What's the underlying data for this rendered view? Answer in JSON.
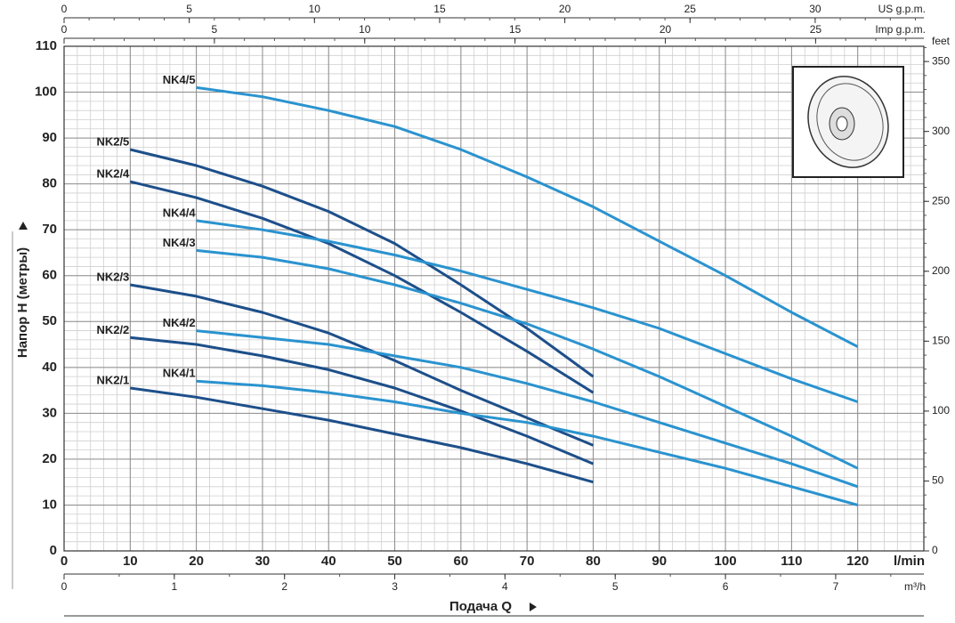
{
  "chart_data": {
    "type": "line",
    "y_label": "Напор H (метры)",
    "x_label": "Подача Q",
    "x_unit": "l/min",
    "x": [
      10,
      20,
      30,
      40,
      50,
      60,
      70,
      80,
      90,
      100,
      110,
      120
    ],
    "xlim": [
      0,
      130
    ],
    "xticks": [
      0,
      10,
      20,
      30,
      40,
      50,
      60,
      70,
      80,
      90,
      100,
      110,
      120
    ],
    "ylim": [
      0,
      110
    ],
    "yticks": [
      0,
      10,
      20,
      30,
      40,
      50,
      60,
      70,
      80,
      90,
      100,
      110
    ],
    "grid": true,
    "minor_step": {
      "x": 2,
      "y": 2
    },
    "series": [
      {
        "name": "NK2/5",
        "color": "#1d4f8a",
        "values": [
          87.5,
          84,
          79.5,
          74,
          67,
          58,
          48.5,
          38,
          null,
          null,
          null,
          null
        ]
      },
      {
        "name": "NK2/4",
        "color": "#1d4f8a",
        "values": [
          80.5,
          77,
          72.5,
          67,
          60,
          52,
          43.5,
          34.5,
          null,
          null,
          null,
          null
        ]
      },
      {
        "name": "NK2/3",
        "color": "#1d4f8a",
        "values": [
          58,
          55.5,
          52,
          47.5,
          41.5,
          35,
          29,
          23,
          null,
          null,
          null,
          null
        ]
      },
      {
        "name": "NK2/2",
        "color": "#1d4f8a",
        "values": [
          46.5,
          45,
          42.5,
          39.5,
          35.5,
          30.5,
          25,
          19,
          null,
          null,
          null,
          null
        ]
      },
      {
        "name": "NK2/1",
        "color": "#1d4f8a",
        "values": [
          35.5,
          33.5,
          31,
          28.5,
          25.5,
          22.5,
          19,
          15,
          null,
          null,
          null,
          null
        ]
      },
      {
        "name": "NK4/5",
        "color": "#2a93cf",
        "values": [
          null,
          101,
          99,
          96,
          92.5,
          87.5,
          81.5,
          75,
          67.5,
          60,
          52,
          44.5
        ]
      },
      {
        "name": "NK4/4",
        "color": "#2a93cf",
        "values": [
          null,
          72,
          70,
          67.5,
          64.5,
          61,
          57,
          53,
          48.5,
          43,
          37.5,
          32.5
        ]
      },
      {
        "name": "NK4/3",
        "color": "#2a93cf",
        "values": [
          null,
          65.5,
          64,
          61.5,
          58,
          54,
          49.5,
          44,
          38,
          31.5,
          25,
          18
        ]
      },
      {
        "name": "NK4/2",
        "color": "#2a93cf",
        "values": [
          null,
          48,
          46.5,
          45,
          42.5,
          40,
          36.5,
          32.5,
          28,
          23.5,
          19,
          14
        ]
      },
      {
        "name": "NK4/1",
        "color": "#2a93cf",
        "values": [
          null,
          37,
          36,
          34.5,
          32.5,
          30,
          28,
          25,
          21.5,
          18,
          14,
          10
        ]
      }
    ],
    "secondary_axes": [
      {
        "label": "US g.p.m.",
        "position": "top",
        "lim": [
          0,
          34.34
        ],
        "ticks": [
          0,
          5,
          10,
          15,
          20,
          25,
          30
        ],
        "minor_step": 1
      },
      {
        "label": "Imp g.p.m.",
        "position": "top",
        "lim": [
          0,
          28.6
        ],
        "ticks": [
          0,
          5,
          10,
          15,
          20,
          25
        ],
        "minor_step": 1
      },
      {
        "label": "m³/h",
        "position": "bottom",
        "lim": [
          0,
          7.8
        ],
        "ticks": [
          0,
          1,
          2,
          3,
          4,
          5,
          6,
          7
        ],
        "minor_step": 0.5
      },
      {
        "label": "feet",
        "position": "right",
        "lim": [
          0,
          360.9
        ],
        "ticks": [
          0,
          50,
          100,
          150,
          200,
          250,
          300,
          350
        ],
        "minor_step": 10
      }
    ]
  }
}
